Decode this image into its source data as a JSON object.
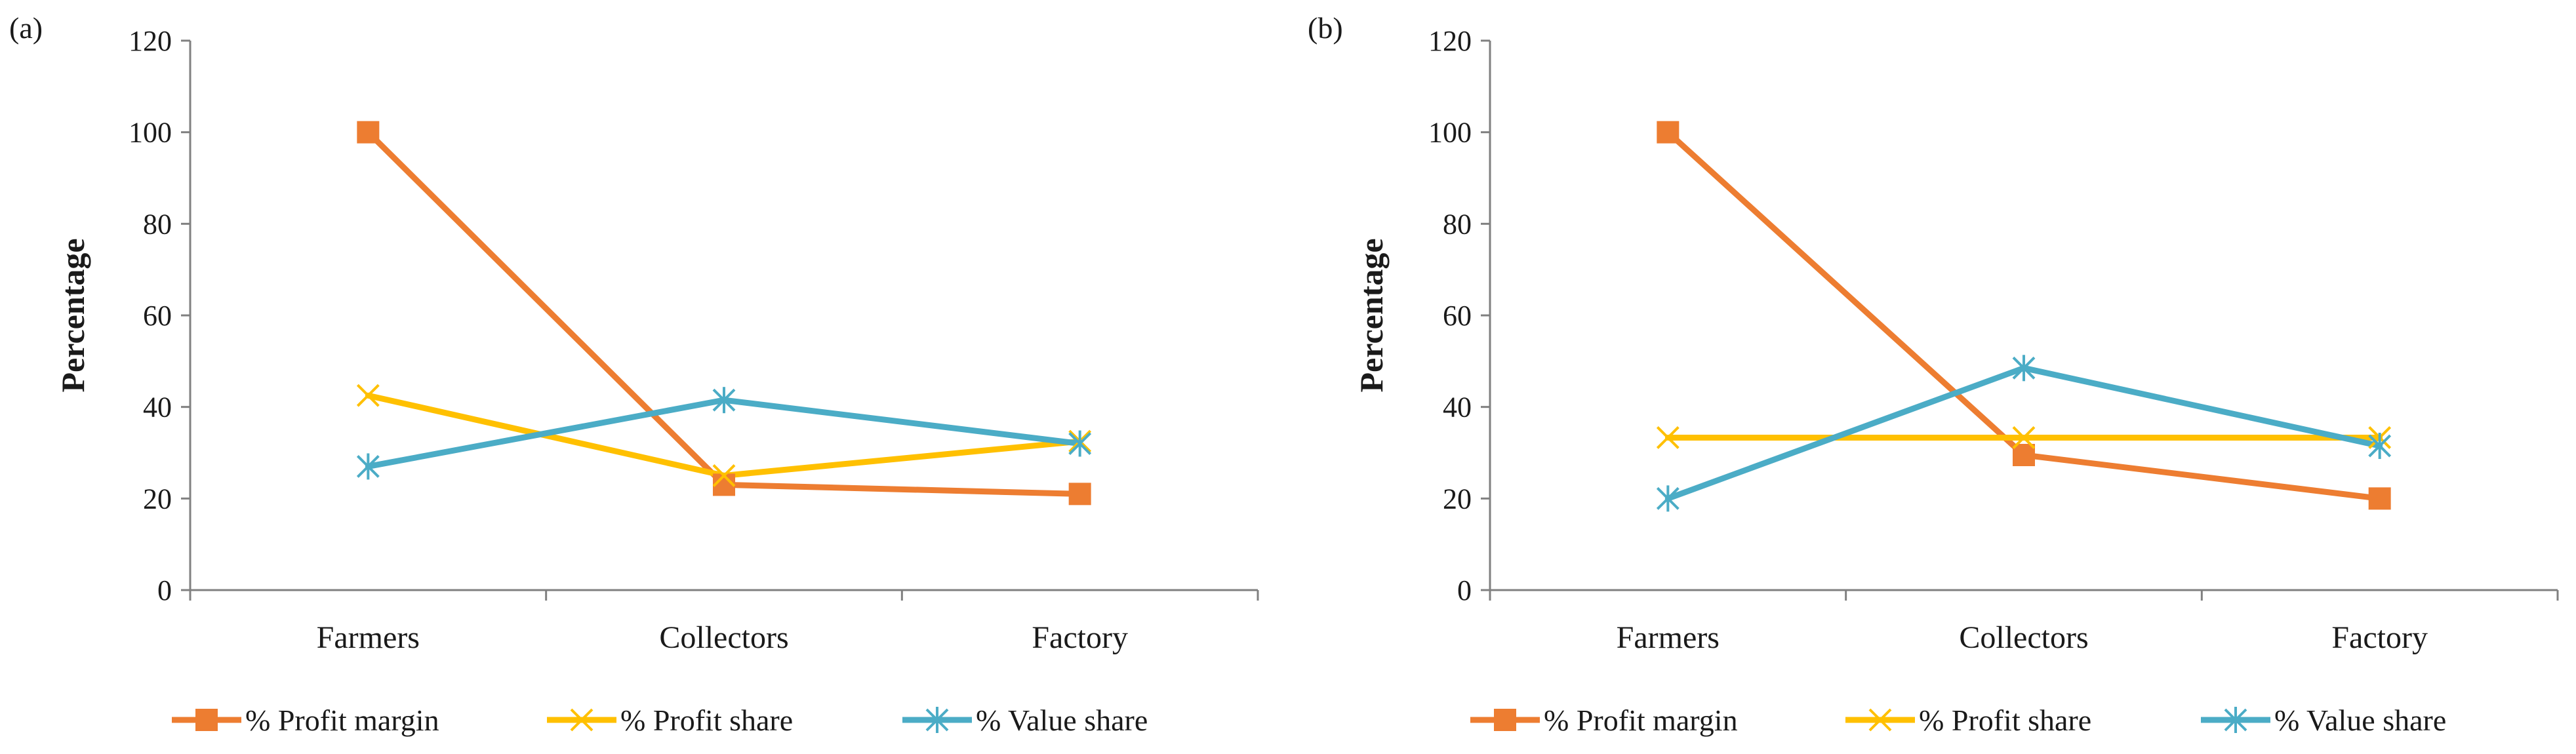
{
  "chart_data": [
    {
      "panel_label": "(a)",
      "type": "line",
      "categories": [
        "Farmers",
        "Collectors",
        "Factory"
      ],
      "ylabel": "Percentage",
      "xlabel": "",
      "ylim": [
        0,
        120
      ],
      "yticks": [
        0,
        20,
        40,
        60,
        80,
        100,
        120
      ],
      "series": [
        {
          "name": "% Profit margin",
          "color": "#ED7D31",
          "marker": "square",
          "values": [
            100,
            23,
            21
          ]
        },
        {
          "name": "% Profit share",
          "color": "#FFC000",
          "marker": "x",
          "values": [
            42.5,
            25,
            32.5
          ]
        },
        {
          "name": "% Value share",
          "color": "#4BACC6",
          "marker": "star",
          "values": [
            27,
            41.5,
            32
          ]
        }
      ],
      "legend": "bottom"
    },
    {
      "panel_label": "(b)",
      "type": "line",
      "categories": [
        "Farmers",
        "Collectors",
        "Factory"
      ],
      "ylabel": "Percentage",
      "xlabel": "",
      "ylim": [
        0,
        120
      ],
      "yticks": [
        0,
        20,
        40,
        60,
        80,
        100,
        120
      ],
      "series": [
        {
          "name": "% Profit margin",
          "color": "#ED7D31",
          "marker": "square",
          "values": [
            100,
            29.5,
            20
          ]
        },
        {
          "name": "% Profit share",
          "color": "#FFC000",
          "marker": "x",
          "values": [
            33.3,
            33.3,
            33.3
          ]
        },
        {
          "name": "% Value share",
          "color": "#4BACC6",
          "marker": "star",
          "values": [
            20,
            48.5,
            31.5
          ]
        }
      ],
      "legend": "bottom"
    }
  ]
}
